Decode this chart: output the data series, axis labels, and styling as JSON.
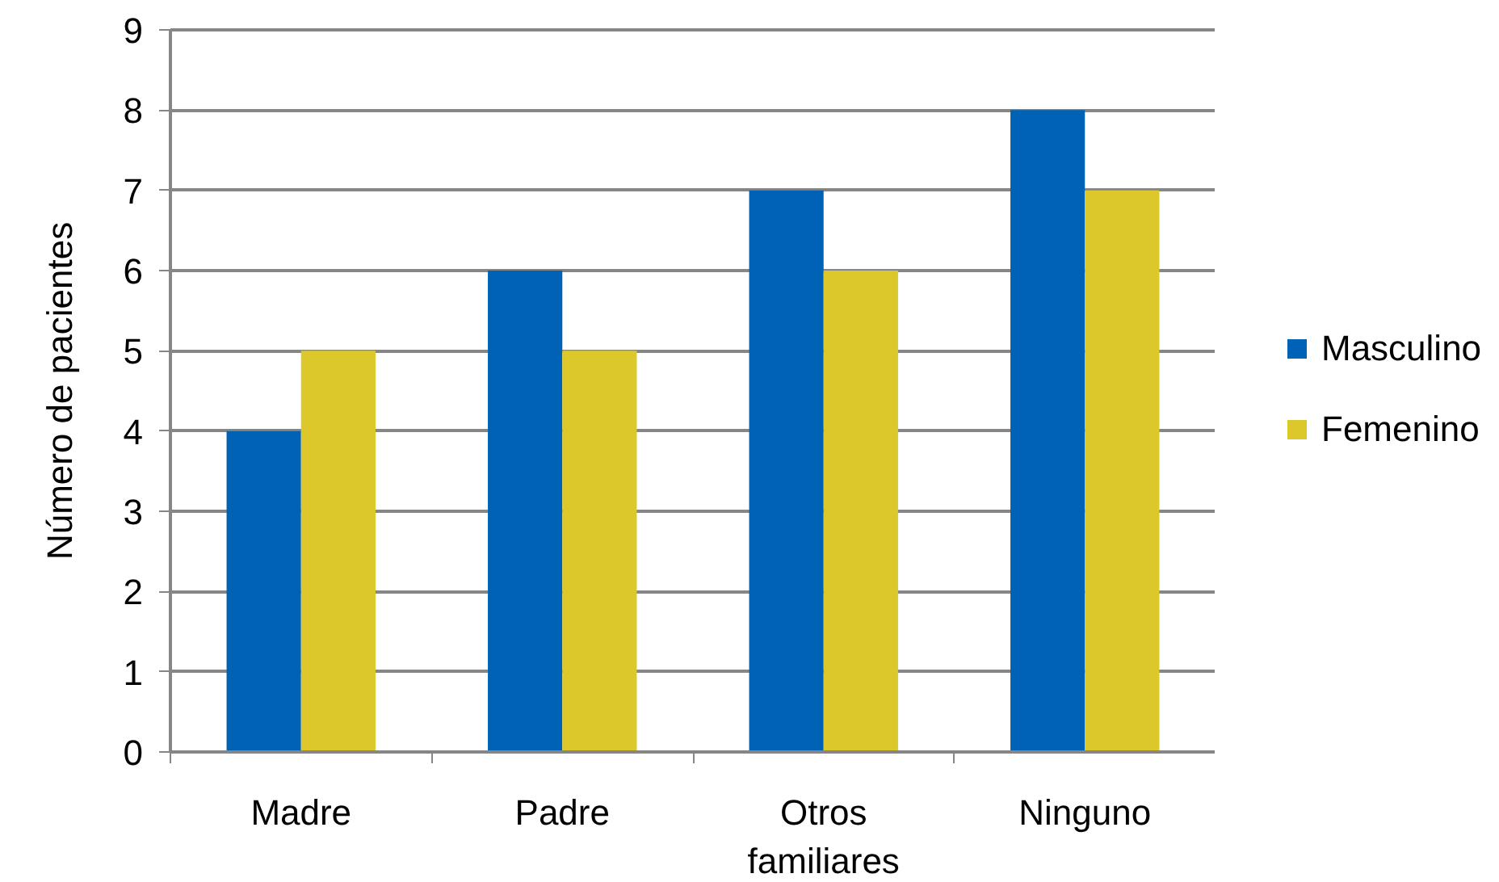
{
  "chart_data": {
    "type": "bar",
    "ylabel": "Número de pacientes",
    "categories": [
      "Madre",
      "Padre",
      "Otros familiares",
      "Ninguno"
    ],
    "series": [
      {
        "name": "Masculino",
        "color": "#0062b4",
        "values": [
          4,
          6,
          7,
          8
        ]
      },
      {
        "name": "Femenino",
        "color": "#dcc82a",
        "values": [
          5,
          5,
          6,
          7
        ]
      }
    ],
    "ylim": [
      0,
      9
    ],
    "yticks": [
      0,
      1,
      2,
      3,
      4,
      5,
      6,
      7,
      8,
      9
    ],
    "grid": "y",
    "legend": "right"
  }
}
